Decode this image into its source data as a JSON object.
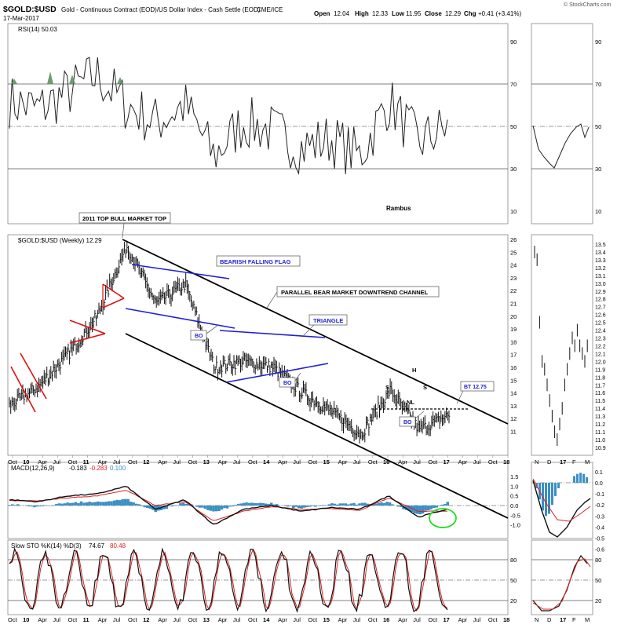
{
  "header": {
    "symbol": "$GOLD:$USD",
    "description": "Gold - Continuous Contract (EOD)/US Dollar Index - Cash Settle (EOD)",
    "exchange": "CME/ICE",
    "date": "17-Mar-2017",
    "open_label": "Open",
    "open": "12.04",
    "high_label": "High",
    "high": "12.33",
    "low_label": "Low",
    "low": "11.95",
    "close_label": "Close",
    "close": "12.29",
    "chg_label": "Chg",
    "chg": "+0.41 (+3.41%)",
    "credit": "© StockCharts.com"
  },
  "rsi_panel": {
    "label": "RSI(14) 50.03",
    "watermark": "Rambus",
    "ticks": [
      90,
      70,
      50,
      30,
      10
    ]
  },
  "price_panel": {
    "label": "$GOLD:$USD (Weekly) 12.29",
    "ticks": [
      26,
      25,
      24,
      23,
      22,
      21,
      20,
      19,
      18,
      17,
      16,
      15,
      14,
      13,
      12,
      11
    ],
    "right_ticks": [
      "13.5",
      "13.4",
      "13.3",
      "13.2",
      "13.1",
      "13.0",
      "12.9",
      "12.8",
      "12.7",
      "12.6",
      "12.5",
      "12.4",
      "12.3",
      "12.2",
      "12.1",
      "12.0",
      "11.9",
      "11.8",
      "11.7",
      "11.6",
      "11.5",
      "11.4",
      "11.3",
      "11.2",
      "11.1",
      "11.0",
      "10.9"
    ]
  },
  "annotations": {
    "top": "2011 TOP BULL MARKET TOP",
    "flag": "BEARISH FALLING FLAG",
    "channel": "PARALLEL BEAR MARKET  DOWNTREND CHANNEL",
    "triangle": "TRIANGLE",
    "bo1": "BO",
    "bo2": "BO",
    "bo3": "BO",
    "h": "H",
    "s1": "S",
    "s2": "S",
    "nl": "NL",
    "bt": "BT 12.75"
  },
  "macd_panel": {
    "label_prefix": "MACD(12,26,9)",
    "macd": "-0.183",
    "signal": "-0.283",
    "hist": "0.100",
    "ticks": [
      "1.5",
      "1.0",
      "0.5",
      "0.0",
      "-0.5",
      "-1.0"
    ],
    "right_ticks": [
      "0.1",
      "0.0",
      "-0.1",
      "-0.2",
      "-0.3",
      "-0.4",
      "-0.5",
      "-0.6"
    ]
  },
  "sto_panel": {
    "label_prefix": "Slow STO %K(14) %D(3)",
    "k": "74.67",
    "d": "80.48",
    "ticks": [
      80,
      50,
      20
    ]
  },
  "x_axis": {
    "labels": [
      "Oct",
      "10",
      "Apr",
      "Jul",
      "Oct",
      "11",
      "Apr",
      "Jul",
      "Oct",
      "12",
      "Apr",
      "Jul",
      "Oct",
      "13",
      "Apr",
      "Jul",
      "Oct",
      "14",
      "Apr",
      "Jul",
      "Oct",
      "15",
      "Apr",
      "Jul",
      "Oct",
      "16",
      "Apr",
      "Jul",
      "Oct",
      "17",
      "Apr",
      "Jul",
      "Oct",
      "18"
    ],
    "right_labels": [
      "N",
      "D",
      "17",
      "F",
      "M"
    ]
  },
  "colors": {
    "trendline": "#000000",
    "pattern_blue": "#1f1fd6",
    "pattern_red": "#e01010",
    "hist_blue": "#3a8fc4",
    "signal_red": "#e02020",
    "ring_green": "#22dd22",
    "rsi_fill": "#5a8a5a"
  },
  "chart_data": [
    {
      "type": "line",
      "title": "RSI(14) 50.03",
      "ylim": [
        0,
        100
      ],
      "reference_lines": [
        70,
        50,
        30
      ],
      "x": [
        "Oct 2009",
        "Apr 2010",
        "Oct 2010",
        "Apr 2011",
        "Oct 2011",
        "Apr 2012",
        "Oct 2012",
        "Apr 2013",
        "Oct 2013",
        "Apr 2014",
        "Oct 2014",
        "Apr 2015",
        "Oct 2015",
        "Apr 2016",
        "Oct 2016",
        "Mar 2017"
      ],
      "values": [
        62,
        58,
        66,
        74,
        60,
        52,
        60,
        36,
        52,
        48,
        40,
        44,
        36,
        62,
        42,
        50
      ]
    },
    {
      "type": "line",
      "title": "$GOLD:$USD (Weekly) 12.29",
      "ylim": [
        10.5,
        26
      ],
      "x": [
        "Oct 2009",
        "Apr 2010",
        "Oct 2010",
        "Apr 2011",
        "Sep 2011",
        "Apr 2012",
        "Oct 2012",
        "Apr 2013",
        "Oct 2013",
        "Apr 2014",
        "Oct 2014",
        "Apr 2015",
        "Dec 2015",
        "Jul 2016",
        "Dec 2016",
        "Mar 2017"
      ],
      "values": [
        13.0,
        14.5,
        17.0,
        20.0,
        25.5,
        21.0,
        22.5,
        16.0,
        16.5,
        16.0,
        14.0,
        12.5,
        10.8,
        14.2,
        11.1,
        12.29
      ]
    },
    {
      "type": "line",
      "title": "MACD(12,26,9)",
      "series": [
        {
          "name": "MACD",
          "values": [
            0.3,
            0.2,
            0.5,
            0.6,
            1.0,
            -0.2,
            0.3,
            -1.0,
            -0.2,
            0.0,
            -0.3,
            -0.1,
            -0.2,
            0.5,
            -0.6,
            -0.18
          ]
        },
        {
          "name": "Signal",
          "values": [
            0.25,
            0.25,
            0.4,
            0.5,
            0.8,
            0.0,
            0.2,
            -0.8,
            -0.3,
            -0.05,
            -0.2,
            -0.15,
            -0.25,
            0.4,
            -0.3,
            -0.28
          ]
        }
      ],
      "ylim": [
        -1.2,
        1.6
      ]
    },
    {
      "type": "line",
      "title": "Slow STO %K(14) %D(3)",
      "ylim": [
        0,
        100
      ],
      "reference_lines": [
        80,
        50,
        20
      ],
      "series": [
        {
          "name": "%K",
          "values": [
            80,
            20,
            85,
            30,
            88,
            15,
            80,
            10,
            75,
            20,
            70,
            15,
            85,
            30,
            10,
            74.67
          ]
        },
        {
          "name": "%D",
          "values": [
            78,
            25,
            80,
            35,
            85,
            20,
            78,
            15,
            70,
            25,
            65,
            20,
            80,
            35,
            15,
            80.48
          ]
        }
      ]
    }
  ]
}
